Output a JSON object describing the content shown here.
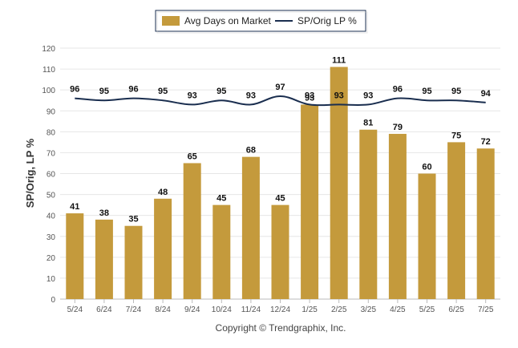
{
  "chart_data": {
    "type": "bar",
    "categories": [
      "5/24",
      "6/24",
      "7/24",
      "8/24",
      "9/24",
      "10/24",
      "11/24",
      "12/24",
      "1/25",
      "2/25",
      "3/25",
      "4/25",
      "5/25",
      "6/25",
      "7/25"
    ],
    "series": [
      {
        "name": "Avg Days on Market",
        "type": "bar",
        "color": "#c49a3c",
        "values": [
          41,
          38,
          35,
          48,
          65,
          45,
          68,
          45,
          93,
          111,
          81,
          79,
          60,
          75,
          72
        ]
      },
      {
        "name": "SP/Orig LP %",
        "type": "line",
        "color": "#1a2e4f",
        "values": [
          96,
          95,
          96,
          95,
          93,
          95,
          93,
          97,
          93,
          93,
          93,
          96,
          95,
          95,
          94
        ]
      }
    ],
    "ylabel": "SP/Orig, LP %",
    "ylim": [
      0,
      120
    ],
    "yticks": [
      0,
      10,
      20,
      30,
      40,
      50,
      60,
      70,
      80,
      90,
      100,
      110,
      120
    ],
    "grid": true,
    "legend": "top-center"
  },
  "footer": {
    "copyright": "Copyright © Trendgraphix, Inc."
  }
}
